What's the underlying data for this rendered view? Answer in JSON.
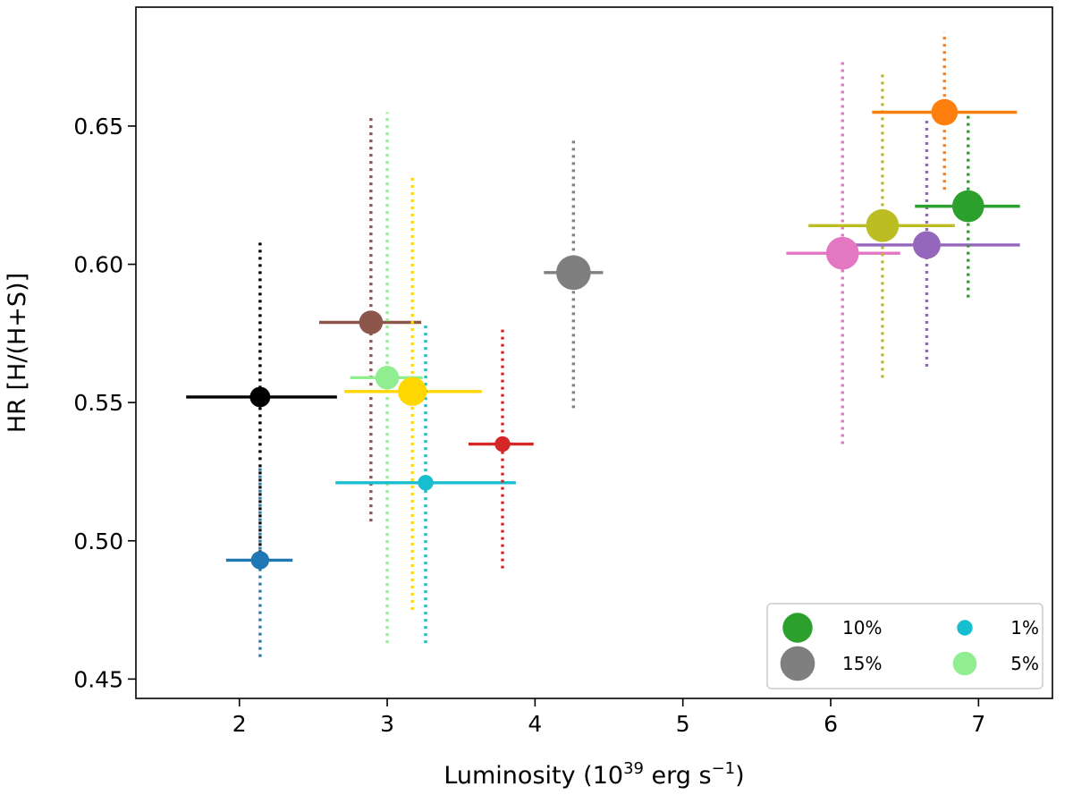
{
  "chart_data": {
    "type": "scatter",
    "title": "",
    "xlabel": {
      "prefix": "Luminosity (10",
      "exp1": "39",
      "mid": " erg s",
      "exp2": "−1",
      "suffix": ")"
    },
    "ylabel": "HR [H/(H+S)]",
    "xlim": [
      1.3,
      7.5
    ],
    "ylim": [
      0.443,
      0.693
    ],
    "xticks": [
      2,
      3,
      4,
      5,
      6,
      7
    ],
    "xtick_labels": [
      "2",
      "3",
      "4",
      "5",
      "6",
      "7"
    ],
    "yticks": [
      0.45,
      0.5,
      0.55,
      0.6,
      0.65
    ],
    "ytick_labels": [
      "0.45",
      "0.50",
      "0.55",
      "0.60",
      "0.65"
    ],
    "grid": false,
    "legend_position": "bottom-right",
    "legend": [
      {
        "label": "10%",
        "marker_pct": 10,
        "color": "#2ca02c"
      },
      {
        "label": "1%",
        "marker_pct": 1,
        "color": "#17becf"
      },
      {
        "label": "15%",
        "marker_pct": 15,
        "color": "#7f7f7f"
      },
      {
        "label": "5%",
        "marker_pct": 5,
        "color": "#90ee90"
      }
    ],
    "points": [
      {
        "name": "black",
        "color": "#000000",
        "x": 2.14,
        "y": 0.552,
        "xerr": [
          1.64,
          2.66
        ],
        "yerr": [
          0.493,
          0.608
        ],
        "marker_pct": 3
      },
      {
        "name": "blue",
        "color": "#1f77b4",
        "x": 2.14,
        "y": 0.493,
        "xerr": [
          1.91,
          2.36
        ],
        "yerr": [
          0.458,
          0.527
        ],
        "marker_pct": 2
      },
      {
        "name": "brown",
        "color": "#8c564b",
        "x": 2.89,
        "y": 0.579,
        "xerr": [
          2.54,
          3.23
        ],
        "yerr": [
          0.507,
          0.653
        ],
        "marker_pct": 5
      },
      {
        "name": "lightgreen",
        "color": "#90ee90",
        "x": 3.0,
        "y": 0.559,
        "xerr": [
          2.75,
          3.24
        ],
        "yerr": [
          0.463,
          0.655
        ],
        "marker_pct": 5
      },
      {
        "name": "gold",
        "color": "#ffd700",
        "x": 3.17,
        "y": 0.554,
        "xerr": [
          2.71,
          3.64
        ],
        "yerr": [
          0.475,
          0.632
        ],
        "marker_pct": 9
      },
      {
        "name": "cyan",
        "color": "#17becf",
        "x": 3.26,
        "y": 0.521,
        "xerr": [
          2.65,
          3.87
        ],
        "yerr": [
          0.463,
          0.578
        ],
        "marker_pct": 1
      },
      {
        "name": "red",
        "color": "#d62728",
        "x": 3.78,
        "y": 0.535,
        "xerr": [
          3.55,
          3.99
        ],
        "yerr": [
          0.49,
          0.578
        ],
        "marker_pct": 1
      },
      {
        "name": "gray",
        "color": "#7f7f7f",
        "x": 4.26,
        "y": 0.597,
        "xerr": [
          4.06,
          4.46
        ],
        "yerr": [
          0.548,
          0.646
        ],
        "marker_pct": 15
      },
      {
        "name": "pink",
        "color": "#e377c2",
        "x": 6.08,
        "y": 0.604,
        "xerr": [
          5.7,
          6.47
        ],
        "yerr": [
          0.535,
          0.674
        ],
        "marker_pct": 13
      },
      {
        "name": "olive",
        "color": "#bcbd22",
        "x": 6.35,
        "y": 0.614,
        "xerr": [
          5.85,
          6.84
        ],
        "yerr": [
          0.559,
          0.669
        ],
        "marker_pct": 13
      },
      {
        "name": "purple",
        "color": "#9467bd",
        "x": 6.65,
        "y": 0.607,
        "xerr": [
          6.03,
          7.28
        ],
        "yerr": [
          0.563,
          0.652
        ],
        "marker_pct": 8
      },
      {
        "name": "green",
        "color": "#2ca02c",
        "x": 6.93,
        "y": 0.621,
        "xerr": [
          6.57,
          7.28
        ],
        "yerr": [
          0.588,
          0.654
        ],
        "marker_pct": 12
      },
      {
        "name": "orange",
        "color": "#ff7f0e",
        "x": 6.77,
        "y": 0.655,
        "xerr": [
          6.28,
          7.26
        ],
        "yerr": [
          0.627,
          0.684
        ],
        "marker_pct": 7
      }
    ]
  }
}
